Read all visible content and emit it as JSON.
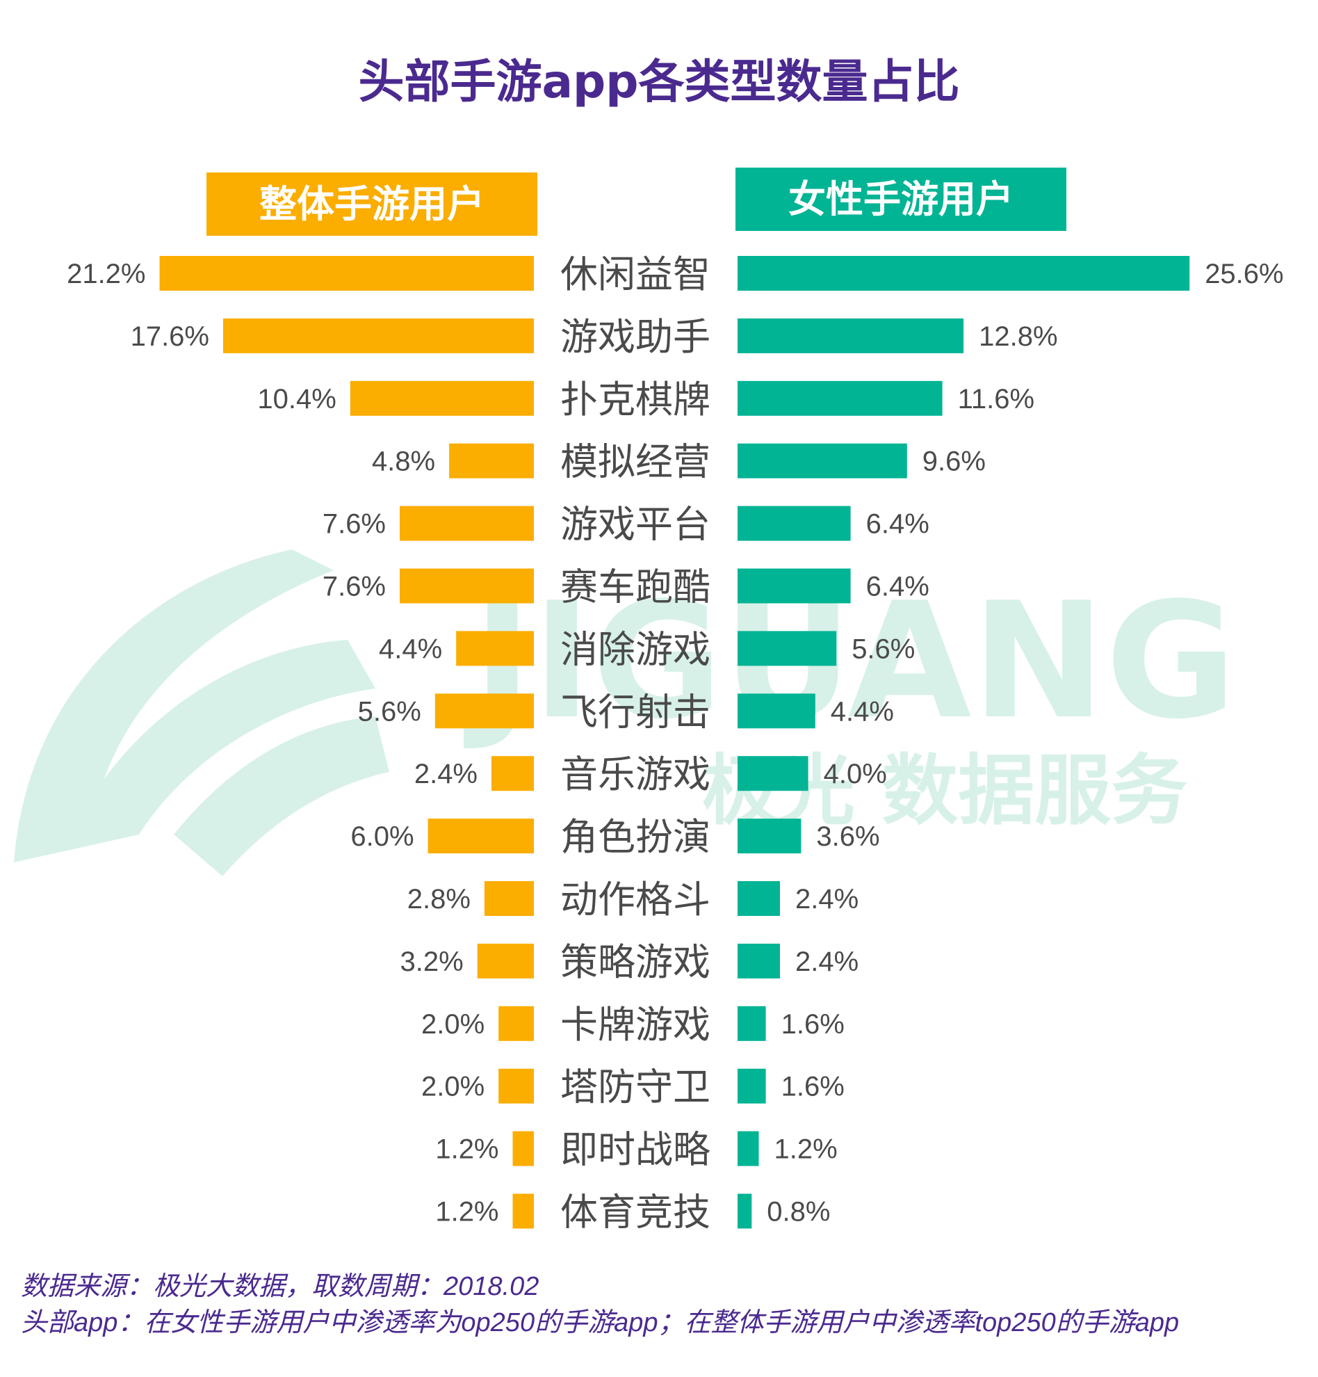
{
  "chart_data": {
    "type": "bar",
    "title": "头部手游app各类型数量占比",
    "categories": [
      "休闲益智",
      "游戏助手",
      "扑克棋牌",
      "模拟经营",
      "游戏平台",
      "赛车跑酷",
      "消除游戏",
      "飞行射击",
      "音乐游戏",
      "角色扮演",
      "动作格斗",
      "策略游戏",
      "卡牌游戏",
      "塔防守卫",
      "即时战略",
      "体育竞技"
    ],
    "series": [
      {
        "name": "整体手游用户",
        "color": "#fbad00",
        "values": [
          21.2,
          17.6,
          10.4,
          4.8,
          7.6,
          7.6,
          4.4,
          5.6,
          2.4,
          6.0,
          2.8,
          3.2,
          2.0,
          2.0,
          1.2,
          1.2
        ]
      },
      {
        "name": "女性手游用户",
        "color": "#00b494",
        "values": [
          25.6,
          12.8,
          11.6,
          9.6,
          6.4,
          6.4,
          5.6,
          4.4,
          4.0,
          3.6,
          2.4,
          2.4,
          1.6,
          1.6,
          1.2,
          0.8
        ]
      }
    ],
    "value_suffix": "%",
    "layout": "back-to-back horizontal bars"
  },
  "watermark": {
    "brand": "JIGUANG",
    "sub": "极光 数据服务",
    "color": "#d8f1e8"
  },
  "footnotes": [
    "数据来源：极光大数据，取数周期：2018.02",
    "头部app：在女性手游用户中渗透率为op250的手游app；在整体手游用户中渗透率top250的手游app"
  ]
}
